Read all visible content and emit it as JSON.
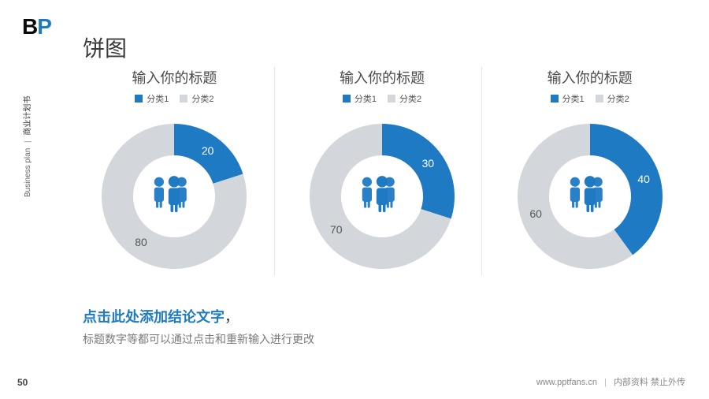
{
  "logo": {
    "left": "B",
    "right": "P",
    "left_color": "#0a0a0a",
    "right_color": "#1f7ac4"
  },
  "side_label": {
    "en": "Business plan",
    "sep": "|",
    "zh": "商业计划书"
  },
  "title": "饼图",
  "page_number": "50",
  "footer": {
    "url": "www.pptfans.cn",
    "note": "内部资料 禁止外传"
  },
  "legend_labels": {
    "cat1": "分类1",
    "cat2": "分类2"
  },
  "colors": {
    "primary": "#1f7ac4",
    "secondary": "#d3d6da",
    "icon": "#1f7ac4",
    "title_text": "#3a3a3a",
    "body_text": "#7a7a7a",
    "value_on_primary": "#ffffff",
    "value_on_secondary": "#555555",
    "divider": "#e6e6e6",
    "background": "#ffffff"
  },
  "charts": [
    {
      "title": "输入你的标题",
      "type": "donut",
      "inner_radius": 52,
      "outer_radius": 92,
      "start_angle_deg": -90,
      "segments": [
        {
          "label": "分类1",
          "value": 20,
          "color": "#1f7ac4",
          "value_color": "#ffffff"
        },
        {
          "label": "分类2",
          "value": 80,
          "color": "#d3d6da",
          "value_color": "#555555"
        }
      ]
    },
    {
      "title": "输入你的标题",
      "type": "donut",
      "inner_radius": 52,
      "outer_radius": 92,
      "start_angle_deg": -90,
      "segments": [
        {
          "label": "分类1",
          "value": 30,
          "color": "#1f7ac4",
          "value_color": "#ffffff"
        },
        {
          "label": "分类2",
          "value": 70,
          "color": "#d3d6da",
          "value_color": "#555555"
        }
      ]
    },
    {
      "title": "输入你的标题",
      "type": "donut",
      "inner_radius": 52,
      "outer_radius": 92,
      "start_angle_deg": -90,
      "segments": [
        {
          "label": "分类1",
          "value": 40,
          "color": "#1f7ac4",
          "value_color": "#ffffff"
        },
        {
          "label": "分类2",
          "value": 60,
          "color": "#d3d6da",
          "value_color": "#555555"
        }
      ]
    }
  ],
  "conclusion": {
    "headline": "点击此处添加结论文字",
    "comma": "，",
    "sub": "标题数字等都可以通过点击和重新输入进行更改"
  }
}
